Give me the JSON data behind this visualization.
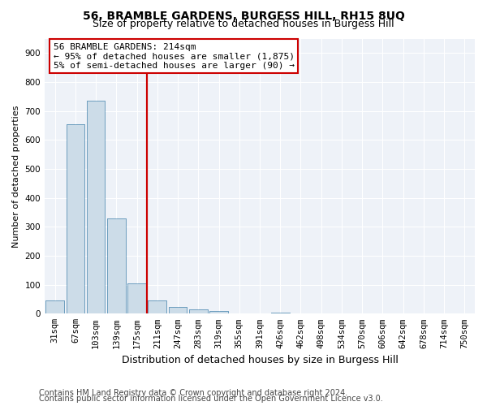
{
  "title": "56, BRAMBLE GARDENS, BURGESS HILL, RH15 8UQ",
  "subtitle": "Size of property relative to detached houses in Burgess Hill",
  "xlabel": "Distribution of detached houses by size in Burgess Hill",
  "ylabel": "Number of detached properties",
  "categories": [
    "31sqm",
    "67sqm",
    "103sqm",
    "139sqm",
    "175sqm",
    "211sqm",
    "247sqm",
    "283sqm",
    "319sqm",
    "355sqm",
    "391sqm",
    "426sqm",
    "462sqm",
    "498sqm",
    "534sqm",
    "570sqm",
    "606sqm",
    "642sqm",
    "678sqm",
    "714sqm",
    "750sqm"
  ],
  "bar_values": [
    45,
    655,
    735,
    330,
    105,
    45,
    22,
    15,
    10,
    0,
    0,
    5,
    0,
    0,
    0,
    0,
    0,
    0,
    0,
    0,
    0
  ],
  "bar_color": "#ccdce8",
  "bar_edge_color": "#6699bb",
  "vline_x_index": 5,
  "vline_color": "#cc0000",
  "annotation_text": "56 BRAMBLE GARDENS: 214sqm\n← 95% of detached houses are smaller (1,875)\n5% of semi-detached houses are larger (90) →",
  "annotation_box_facecolor": "white",
  "annotation_box_edgecolor": "#cc0000",
  "ylim": [
    0,
    950
  ],
  "yticks": [
    0,
    100,
    200,
    300,
    400,
    500,
    600,
    700,
    800,
    900
  ],
  "footnote1": "Contains HM Land Registry data © Crown copyright and database right 2024.",
  "footnote2": "Contains public sector information licensed under the Open Government Licence v3.0.",
  "bg_color": "#eef2f8",
  "grid_color": "white",
  "title_fontsize": 10,
  "subtitle_fontsize": 9,
  "ylabel_fontsize": 8,
  "xlabel_fontsize": 9,
  "tick_fontsize": 7.5,
  "annotation_fontsize": 8,
  "footnote_fontsize": 7
}
